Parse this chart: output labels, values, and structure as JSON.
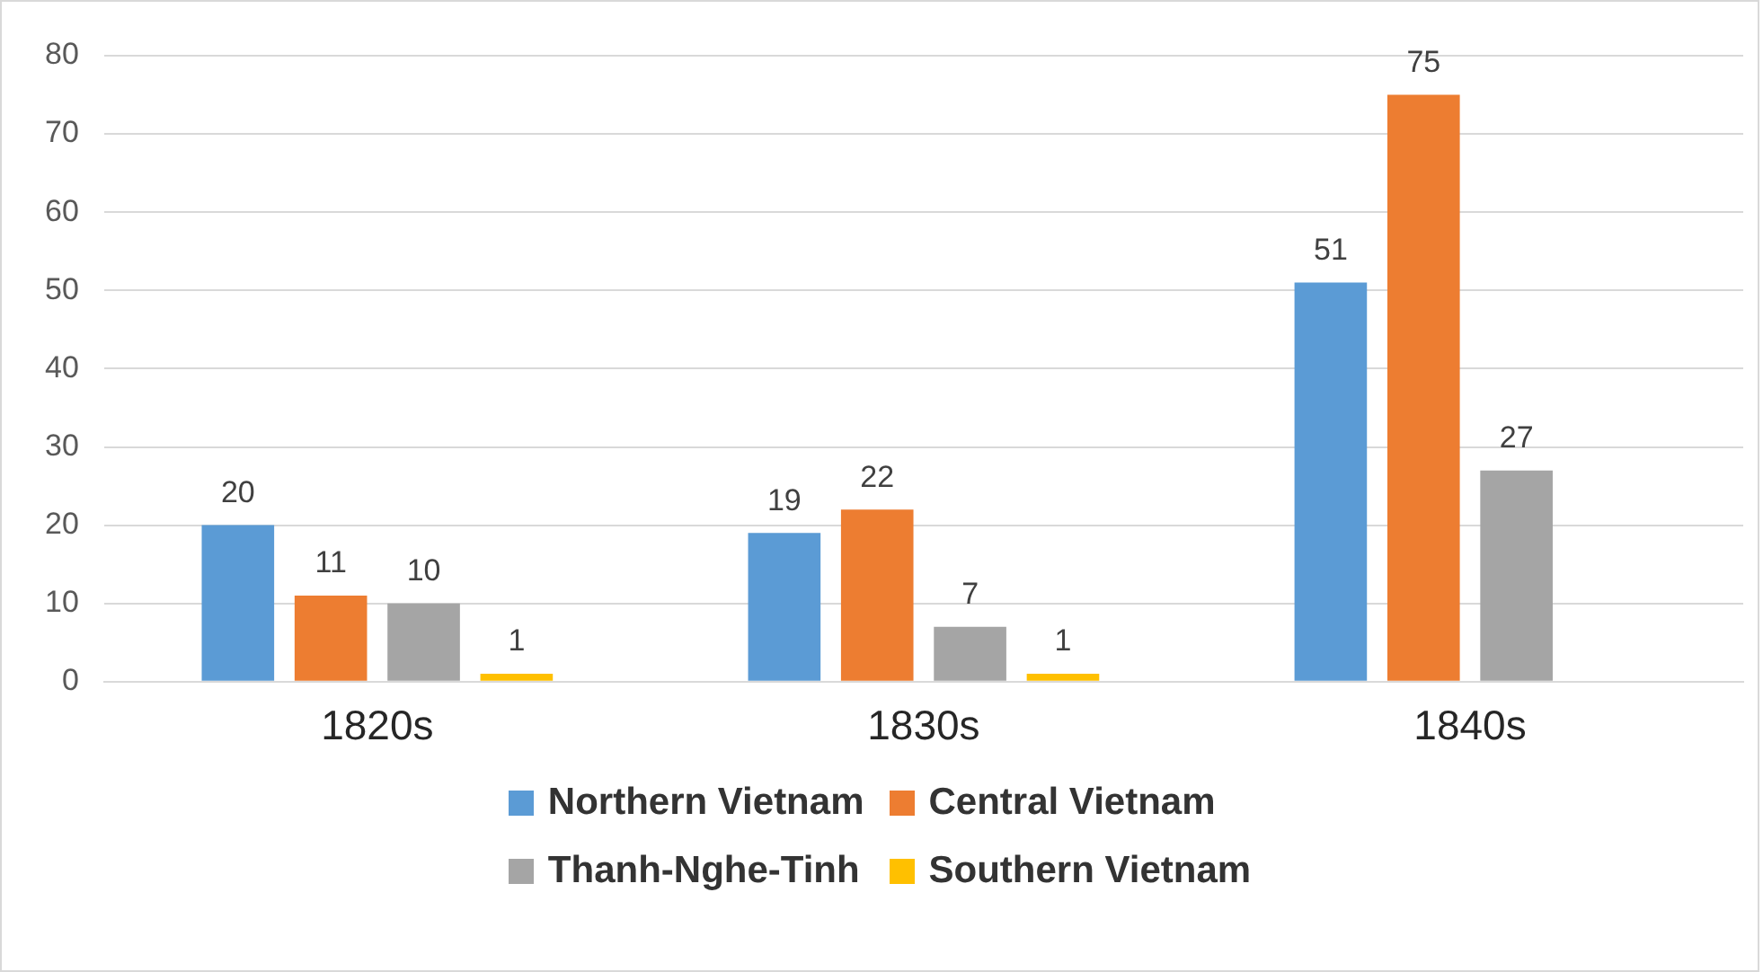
{
  "chart_data": {
    "type": "bar",
    "categories": [
      "1820s",
      "1830s",
      "1840s"
    ],
    "series": [
      {
        "name": "Northern Vietnam",
        "color": "#5b9bd5",
        "values": [
          20,
          19,
          51
        ]
      },
      {
        "name": "Central Vietnam",
        "color": "#ed7d31",
        "values": [
          11,
          22,
          75
        ]
      },
      {
        "name": "Thanh-Nghe-Tinh",
        "color": "#a5a5a5",
        "values": [
          10,
          7,
          27
        ]
      },
      {
        "name": "Southern Vietnam",
        "color": "#ffc000",
        "values": [
          1,
          1,
          null
        ]
      }
    ],
    "ylim": [
      0,
      80
    ],
    "yticks": [
      0,
      10,
      20,
      30,
      40,
      50,
      60,
      70,
      80
    ],
    "grid": "y",
    "legend": "bottom",
    "data_labels": true
  }
}
